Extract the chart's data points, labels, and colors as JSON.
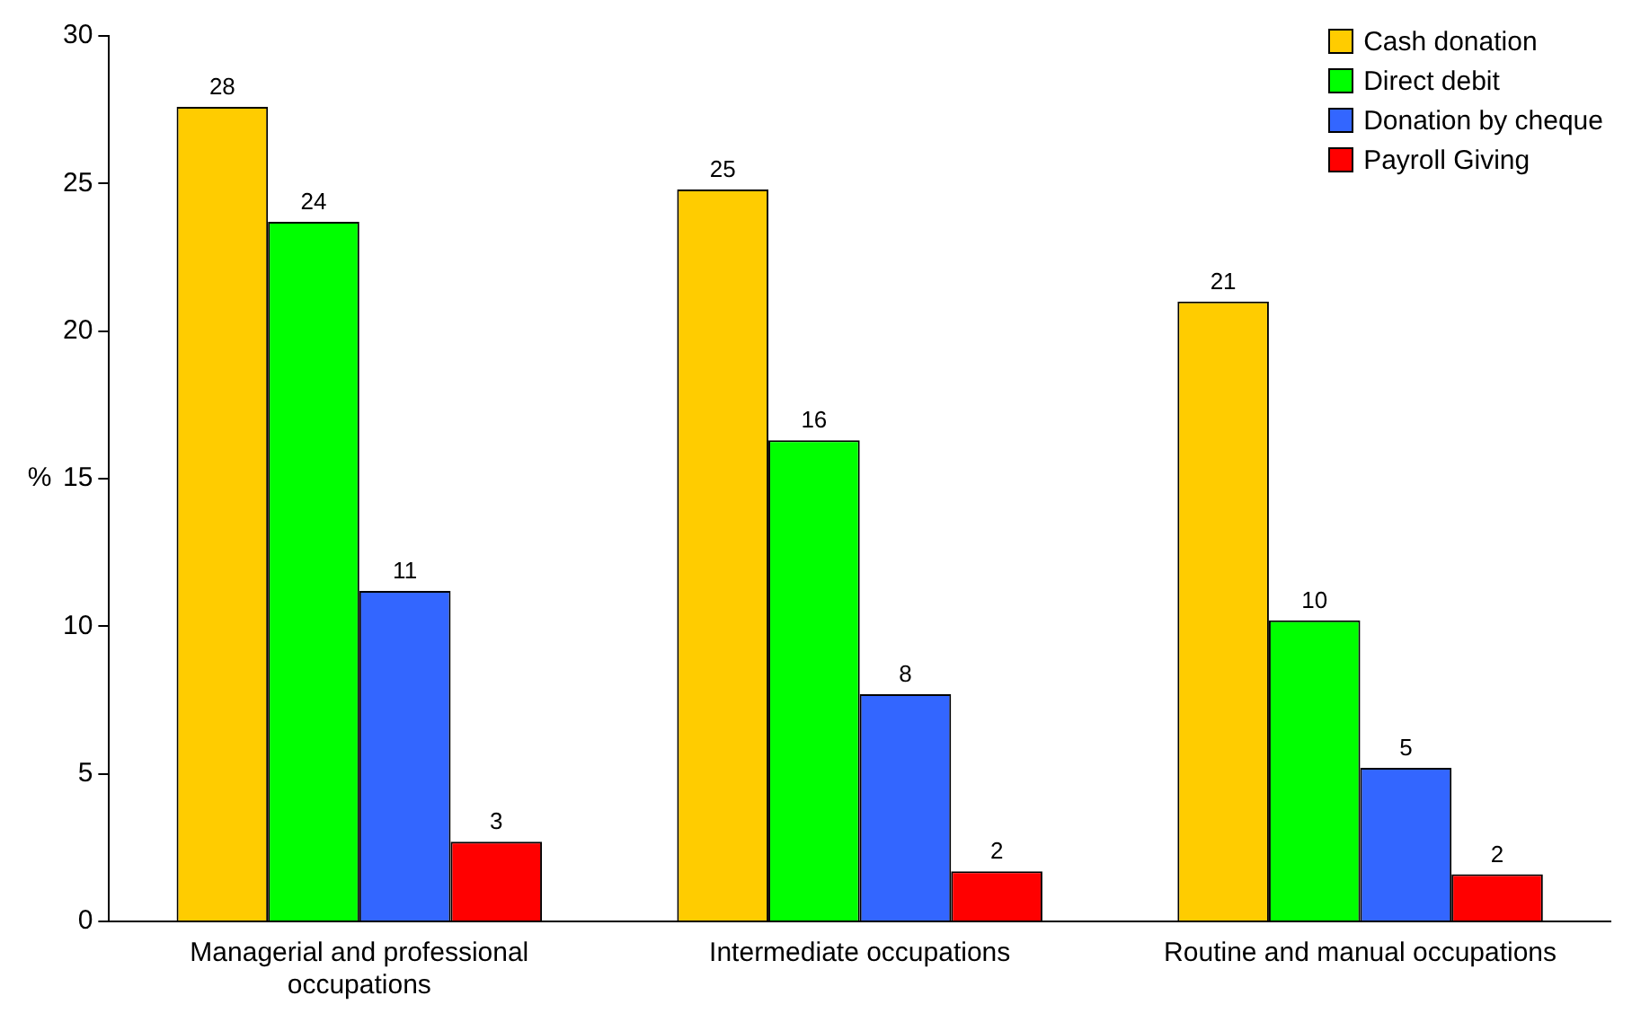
{
  "chart_data": {
    "type": "bar",
    "ylabel": "%",
    "categories": [
      "Managerial and professional occupations",
      "Intermediate occupations",
      "Routine and manual occupations"
    ],
    "series": [
      {
        "name": "Cash donation",
        "color": "#ffcc00",
        "values": [
          27.6,
          24.8,
          21.0
        ],
        "value_labels": [
          "28",
          "25",
          "21"
        ]
      },
      {
        "name": "Direct debit",
        "color": "#00ff00",
        "values": [
          23.7,
          16.3,
          10.2
        ],
        "value_labels": [
          "24",
          "16",
          "10"
        ]
      },
      {
        "name": "Donation by cheque",
        "color": "#3366ff",
        "values": [
          11.2,
          7.7,
          5.2
        ],
        "value_labels": [
          "11",
          "8",
          "5"
        ]
      },
      {
        "name": "Payroll Giving",
        "color": "#ff0000",
        "values": [
          2.7,
          1.7,
          1.6
        ],
        "value_labels": [
          "3",
          "2",
          "2"
        ]
      }
    ],
    "ylim": [
      0,
      30
    ],
    "yticks": [
      0,
      5,
      10,
      15,
      20,
      25,
      30
    ],
    "grid": false,
    "legend": "top right"
  }
}
